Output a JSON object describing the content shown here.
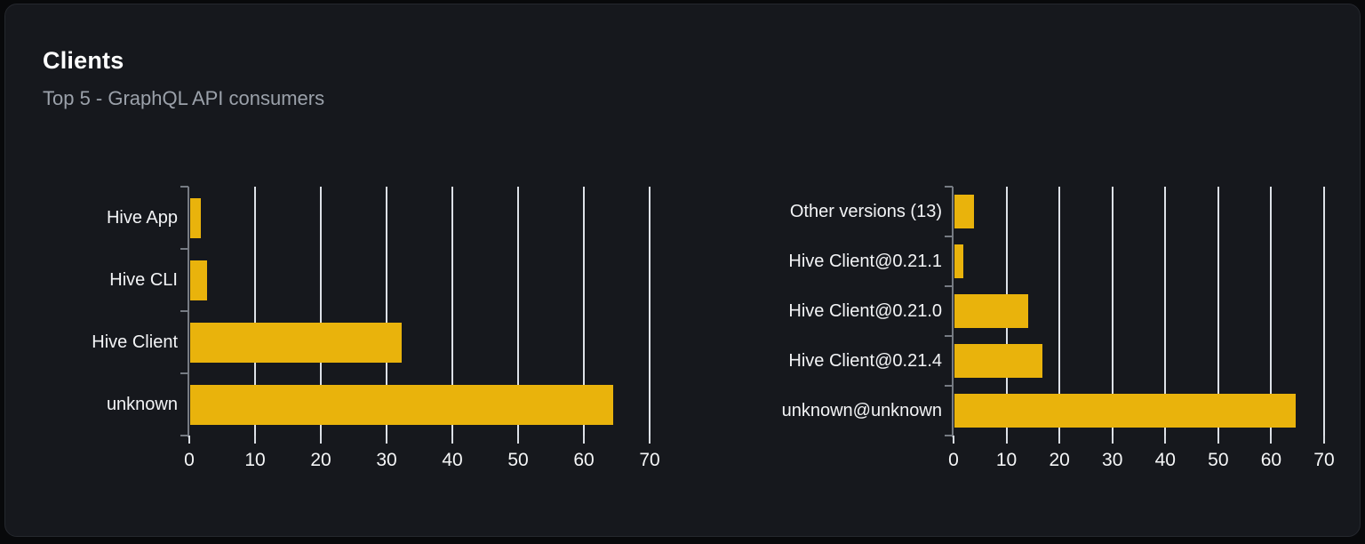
{
  "header": {
    "title": "Clients",
    "subtitle": "Top 5 - GraphQL API consumers"
  },
  "colors": {
    "page_background": "#08090b",
    "card_background": "#16181d",
    "card_border": "#25282e",
    "title": "#ffffff",
    "subtitle": "#9ba1aa",
    "bar": "#e9b30c",
    "gridline": "#dde1e7",
    "axis": "#767b83",
    "x_tick": "#d8dce2",
    "category_label": "#f3f4f6",
    "tick_label": "#f5f6f7"
  },
  "chart_data": [
    {
      "type": "bar",
      "orientation": "horizontal",
      "name": "top-clients-by-name",
      "categories": [
        "Hive App",
        "Hive CLI",
        "Hive Client",
        "unknown"
      ],
      "values": [
        1.6,
        2.5,
        32.1,
        64.3
      ],
      "title": "",
      "xlabel": "",
      "ylabel": "",
      "xlim": [
        0,
        70
      ],
      "xticks": [
        0,
        10,
        20,
        30,
        40,
        50,
        60,
        70
      ],
      "grid": "vertical-gridlines-behind-bars",
      "legend": "none",
      "bar_color": "#e9b30c"
    },
    {
      "type": "bar",
      "orientation": "horizontal",
      "name": "top-clients-by-version",
      "categories": [
        "Other versions (13)",
        "Hive Client@0.21.1",
        "Hive Client@0.21.0",
        "Hive Client@0.21.4",
        "unknown@unknown"
      ],
      "values": [
        3.7,
        1.6,
        13.9,
        16.6,
        64.4
      ],
      "title": "",
      "xlabel": "",
      "ylabel": "",
      "xlim": [
        0,
        70
      ],
      "xticks": [
        0,
        10,
        20,
        30,
        40,
        50,
        60,
        70
      ],
      "grid": "vertical-gridlines-behind-bars",
      "legend": "none",
      "bar_color": "#e9b30c"
    }
  ]
}
